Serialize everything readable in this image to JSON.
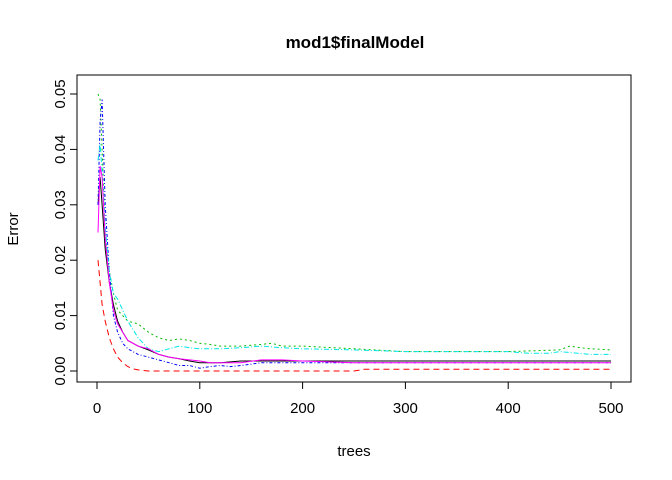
{
  "chart_data": {
    "type": "line",
    "title": "mod1$finalModel",
    "xlabel": "trees",
    "ylabel": "Error",
    "xlim": [
      0,
      500
    ],
    "ylim": [
      0,
      0.05
    ],
    "xticks": [
      0,
      100,
      200,
      300,
      400,
      500
    ],
    "xtick_labels": [
      "0",
      "100",
      "200",
      "300",
      "400",
      "500"
    ],
    "yticks": [
      0,
      0.01,
      0.02,
      0.03,
      0.04,
      0.05
    ],
    "ytick_labels": [
      "0.00",
      "0.01",
      "0.02",
      "0.03",
      "0.04",
      "0.05"
    ],
    "grid": false,
    "legend": "none",
    "series": [
      {
        "color": "#000000",
        "dash": "",
        "x": [
          1,
          3,
          5,
          8,
          12,
          16,
          20,
          25,
          30,
          40,
          50,
          60,
          70,
          80,
          90,
          100,
          120,
          140,
          160,
          180,
          200,
          250,
          300,
          350,
          400,
          450,
          500
        ],
        "y": [
          0.03,
          0.035,
          0.03,
          0.022,
          0.016,
          0.012,
          0.009,
          0.007,
          0.0055,
          0.0045,
          0.0038,
          0.003,
          0.0025,
          0.0022,
          0.0018,
          0.0015,
          0.0015,
          0.0018,
          0.0018,
          0.0018,
          0.0018,
          0.0018,
          0.0018,
          0.0018,
          0.0018,
          0.0018,
          0.0018
        ]
      },
      {
        "color": "#ff0000",
        "dash": "6,4",
        "x": [
          1,
          3,
          5,
          8,
          12,
          16,
          20,
          25,
          30,
          35,
          40,
          50,
          100,
          150,
          200,
          250,
          260,
          270,
          300,
          350,
          400,
          450,
          500
        ],
        "y": [
          0.02,
          0.016,
          0.012,
          0.009,
          0.006,
          0.004,
          0.0025,
          0.0015,
          0.0008,
          0.0004,
          0.0002,
          0.0,
          0.0,
          0.0,
          0.0,
          0.0,
          0.0003,
          0.0003,
          0.0003,
          0.0003,
          0.0003,
          0.0003,
          0.0003
        ]
      },
      {
        "color": "#00bb00",
        "dash": "2,3",
        "x": [
          1,
          3,
          5,
          8,
          12,
          16,
          20,
          25,
          30,
          40,
          50,
          60,
          70,
          80,
          90,
          100,
          110,
          120,
          140,
          160,
          170,
          180,
          200,
          250,
          300,
          350,
          400,
          450,
          460,
          470,
          480,
          500
        ],
        "y": [
          0.05,
          0.049,
          0.04,
          0.025,
          0.018,
          0.014,
          0.011,
          0.01,
          0.009,
          0.0085,
          0.007,
          0.006,
          0.0055,
          0.0058,
          0.0055,
          0.005,
          0.0048,
          0.0045,
          0.0045,
          0.0048,
          0.005,
          0.0045,
          0.0045,
          0.004,
          0.0035,
          0.0035,
          0.0035,
          0.0038,
          0.0045,
          0.0042,
          0.004,
          0.0038
        ]
      },
      {
        "color": "#0000ff",
        "dash": "3,2,1,2",
        "x": [
          1,
          3,
          5,
          8,
          12,
          16,
          20,
          25,
          30,
          40,
          50,
          60,
          70,
          80,
          90,
          100,
          110,
          120,
          130,
          140,
          160,
          200,
          250,
          300,
          350,
          400,
          450,
          500
        ],
        "y": [
          0.03,
          0.045,
          0.049,
          0.03,
          0.018,
          0.01,
          0.007,
          0.005,
          0.004,
          0.003,
          0.0025,
          0.002,
          0.0015,
          0.001,
          0.001,
          0.0005,
          0.0008,
          0.001,
          0.0008,
          0.001,
          0.0015,
          0.0015,
          0.0015,
          0.0015,
          0.0015,
          0.0015,
          0.0015,
          0.0015
        ]
      },
      {
        "color": "#00e5e5",
        "dash": "5,2,1,2",
        "x": [
          1,
          3,
          5,
          8,
          12,
          16,
          20,
          25,
          30,
          40,
          50,
          60,
          70,
          80,
          90,
          100,
          120,
          140,
          160,
          180,
          200,
          250,
          300,
          350,
          400,
          420,
          440,
          450,
          480,
          500
        ],
        "y": [
          0.038,
          0.041,
          0.036,
          0.026,
          0.018,
          0.014,
          0.013,
          0.011,
          0.009,
          0.006,
          0.004,
          0.0035,
          0.004,
          0.0045,
          0.0042,
          0.004,
          0.004,
          0.0042,
          0.0045,
          0.0042,
          0.004,
          0.0038,
          0.0035,
          0.0035,
          0.0035,
          0.0032,
          0.0032,
          0.0035,
          0.003,
          0.003
        ]
      },
      {
        "color": "#ff00ff",
        "dash": "",
        "x": [
          1,
          3,
          5,
          8,
          12,
          16,
          20,
          25,
          30,
          40,
          50,
          60,
          70,
          80,
          90,
          100,
          110,
          120,
          140,
          160,
          180,
          200,
          250,
          300,
          350,
          400,
          450,
          500
        ],
        "y": [
          0.025,
          0.037,
          0.035,
          0.024,
          0.016,
          0.011,
          0.0085,
          0.007,
          0.0055,
          0.0045,
          0.004,
          0.003,
          0.0025,
          0.0022,
          0.002,
          0.0018,
          0.0015,
          0.0015,
          0.0015,
          0.002,
          0.002,
          0.0018,
          0.0015,
          0.0015,
          0.0015,
          0.0015,
          0.0015,
          0.0015
        ]
      }
    ]
  }
}
